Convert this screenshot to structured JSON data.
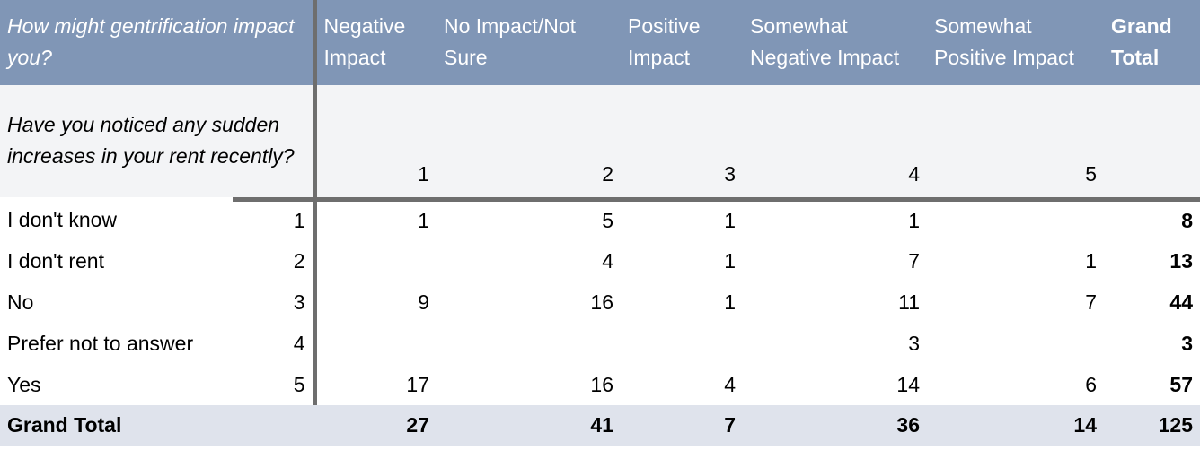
{
  "header": {
    "corner": "How might gentrification impact you?",
    "columns": [
      "Negative Impact",
      "No Impact/Not Sure",
      "Positive Impact",
      "Somewhat Negative Impact",
      "Somewhat Positive Impact"
    ],
    "grand_total": "Grand Total"
  },
  "subheader": {
    "question": "Have you noticed any sudden increases in your rent recently?",
    "column_indexes": [
      "1",
      "2",
      "3",
      "4",
      "5"
    ]
  },
  "rows": [
    {
      "label": "I don't know",
      "index": "1",
      "values": [
        "1",
        "5",
        "1",
        "1",
        ""
      ],
      "total": "8"
    },
    {
      "label": "I don't rent",
      "index": "2",
      "values": [
        "",
        "4",
        "1",
        "7",
        "1"
      ],
      "total": "13"
    },
    {
      "label": "No",
      "index": "3",
      "values": [
        "9",
        "16",
        "1",
        "11",
        "7"
      ],
      "total": "44"
    },
    {
      "label": "Prefer not to answer",
      "index": "4",
      "values": [
        "",
        "",
        "",
        "3",
        ""
      ],
      "total": "3"
    },
    {
      "label": "Yes",
      "index": "5",
      "values": [
        "17",
        "16",
        "4",
        "14",
        "6"
      ],
      "total": "57"
    }
  ],
  "totals": {
    "label": "Grand Total",
    "values": [
      "27",
      "41",
      "7",
      "36",
      "14"
    ],
    "total": "125"
  },
  "colors": {
    "header_bg": "#8096b6",
    "subheader_bg": "#f3f4f6",
    "total_bg": "#dfe3ec",
    "separator": "#6e6e6e"
  }
}
